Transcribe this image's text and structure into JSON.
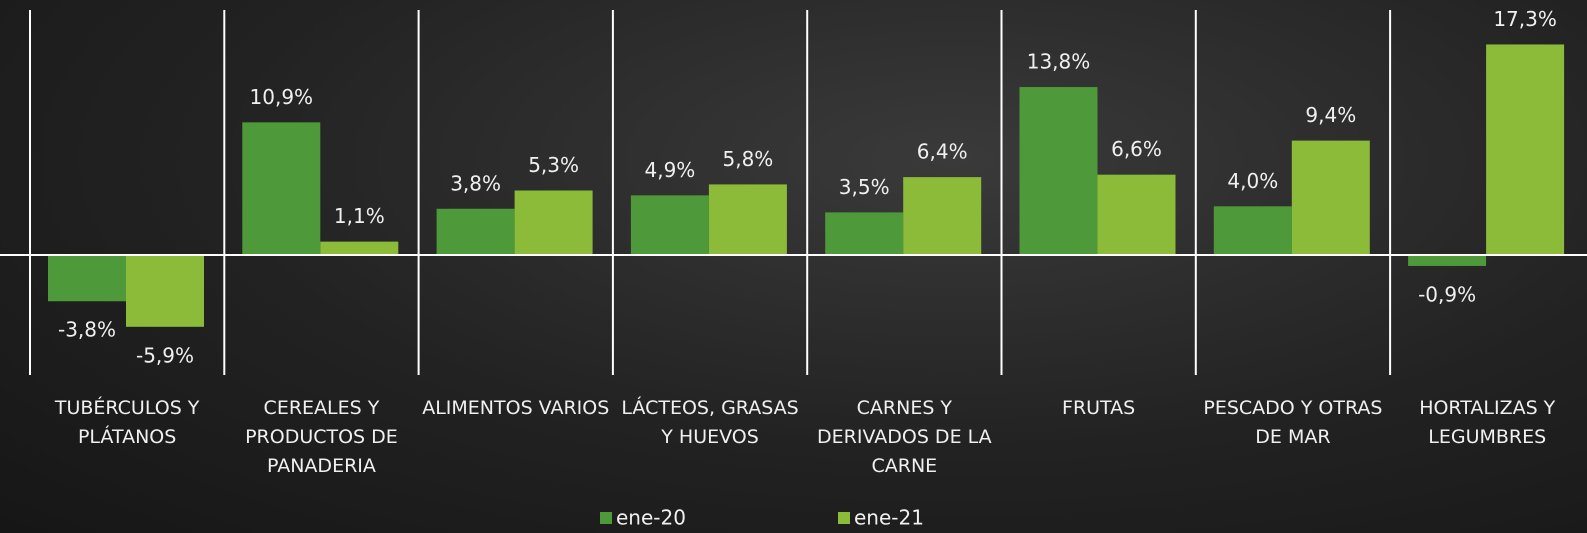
{
  "chart_data": {
    "type": "bar",
    "categories": [
      "TUBÉRCULOS Y PLÁTANOS",
      "CEREALES Y PRODUCTOS DE PANADERIA",
      "ALIMENTOS VARIOS",
      "LÁCTEOS, GRASAS Y HUEVOS",
      "CARNES Y DERIVADOS DE LA CARNE",
      "FRUTAS",
      "PESCADO Y OTRAS DE MAR",
      "HORTALIZAS Y LEGUMBRES"
    ],
    "series": [
      {
        "name": "ene-20",
        "color": "#4e9a3a",
        "values": [
          -3.8,
          10.9,
          3.8,
          4.9,
          3.5,
          13.8,
          4.0,
          -0.9
        ],
        "value_labels": [
          "-3,8%",
          "10,9%",
          "3,8%",
          "4,9%",
          "3,5%",
          "13,8%",
          "4,0%",
          "-0,9%"
        ]
      },
      {
        "name": "ene-21",
        "color": "#8cbb3a",
        "values": [
          -5.9,
          1.1,
          5.3,
          5.8,
          6.4,
          6.6,
          9.4,
          17.3
        ],
        "value_labels": [
          "-5,9%",
          "1,1%",
          "5,3%",
          "5,8%",
          "6,4%",
          "6,6%",
          "9,4%",
          "17,3%"
        ]
      }
    ],
    "legend": "bottom"
  }
}
